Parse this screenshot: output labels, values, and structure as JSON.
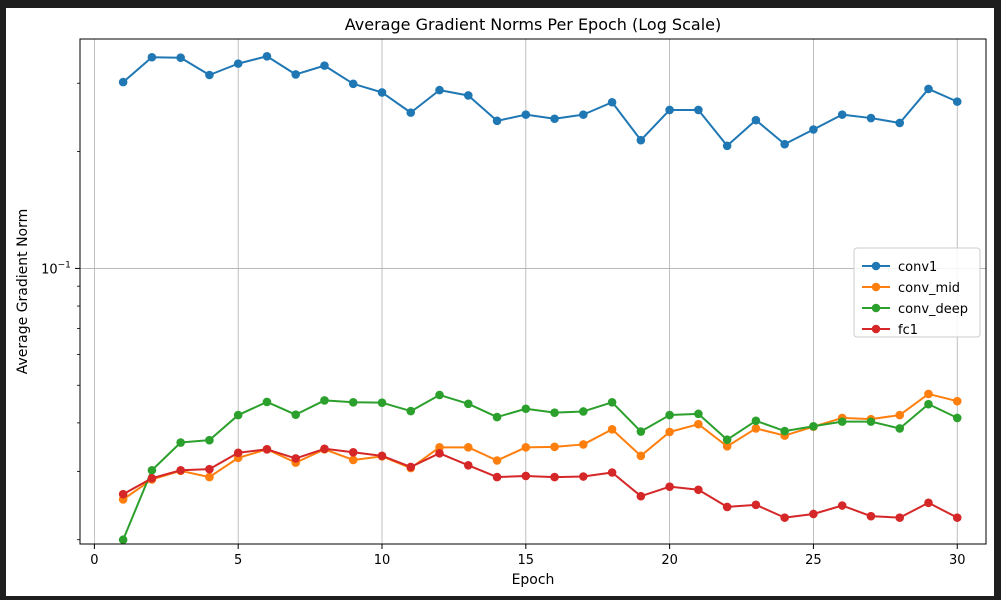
{
  "chart_data": {
    "type": "line",
    "title": "Average Gradient Norms Per Epoch (Log Scale)",
    "xlabel": "Epoch",
    "ylabel": "Average Gradient Norm",
    "xlim": [
      -0.5,
      31.0
    ],
    "ylim": [
      0.0195,
      0.39
    ],
    "yscale": "log",
    "grid": true,
    "legend_position": "center-right",
    "x_ticks": [
      0,
      5,
      10,
      15,
      20,
      25,
      30
    ],
    "y_major_tick": {
      "value": 0.1,
      "base": "10",
      "exponent": "−1"
    },
    "x": [
      1,
      2,
      3,
      4,
      5,
      6,
      7,
      8,
      9,
      10,
      11,
      12,
      13,
      14,
      15,
      16,
      17,
      18,
      19,
      20,
      21,
      22,
      23,
      24,
      25,
      26,
      27,
      28,
      29,
      30
    ],
    "series": [
      {
        "name": "conv1",
        "color": "#1f77b4",
        "values": [
          0.302,
          0.35,
          0.349,
          0.315,
          0.337,
          0.352,
          0.316,
          0.333,
          0.299,
          0.284,
          0.252,
          0.288,
          0.279,
          0.24,
          0.249,
          0.243,
          0.249,
          0.268,
          0.214,
          0.256,
          0.256,
          0.207,
          0.241,
          0.209,
          0.228,
          0.249,
          0.244,
          0.237,
          0.29,
          0.269
        ]
      },
      {
        "name": "conv_mid",
        "color": "#ff7f0e",
        "values": [
          0.0254,
          0.0286,
          0.0301,
          0.029,
          0.0325,
          0.0342,
          0.0316,
          0.0342,
          0.0321,
          0.0328,
          0.0306,
          0.0346,
          0.0346,
          0.032,
          0.0346,
          0.0347,
          0.0352,
          0.0385,
          0.0329,
          0.0379,
          0.0397,
          0.0348,
          0.0387,
          0.0371,
          0.0391,
          0.0412,
          0.0409,
          0.0419,
          0.0475,
          0.0455
        ]
      },
      {
        "name": "conv_deep",
        "color": "#2ca02c",
        "values": [
          0.02,
          0.0302,
          0.0356,
          0.0361,
          0.0419,
          0.0453,
          0.042,
          0.0457,
          0.0452,
          0.0451,
          0.0429,
          0.0472,
          0.0448,
          0.0414,
          0.0435,
          0.0425,
          0.0428,
          0.0452,
          0.038,
          0.0419,
          0.0422,
          0.0362,
          0.0405,
          0.0381,
          0.0392,
          0.0403,
          0.0403,
          0.0387,
          0.0447,
          0.0412
        ]
      },
      {
        "name": "fc1",
        "color": "#d62728",
        "values": [
          0.0262,
          0.0288,
          0.0302,
          0.0304,
          0.0335,
          0.0342,
          0.0324,
          0.0343,
          0.0336,
          0.0329,
          0.0308,
          0.0334,
          0.0311,
          0.029,
          0.0292,
          0.029,
          0.0291,
          0.0298,
          0.0259,
          0.0274,
          0.0269,
          0.0243,
          0.0246,
          0.0228,
          0.0233,
          0.0245,
          0.023,
          0.0228,
          0.0249,
          0.0228
        ]
      }
    ]
  }
}
